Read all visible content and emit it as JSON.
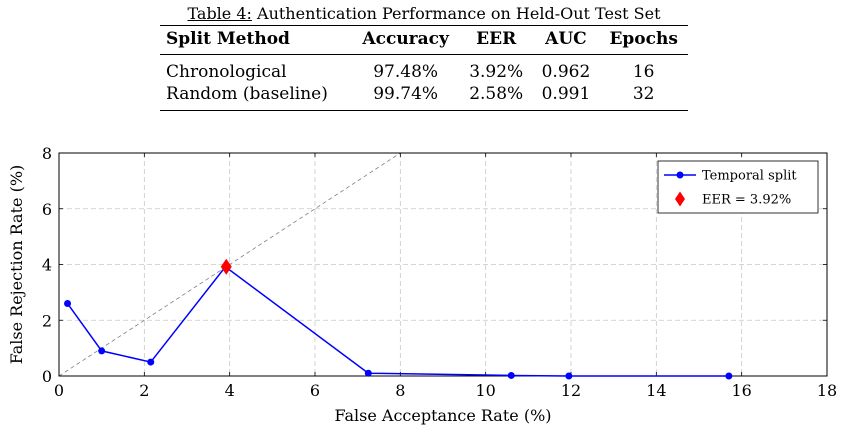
{
  "table": {
    "caption_label": "Table 4:",
    "caption_text": "Authentication Performance on Held-Out Test Set",
    "headers": [
      "Split Method",
      "Accuracy",
      "EER",
      "AUC",
      "Epochs"
    ],
    "rows": [
      [
        "Chronological",
        "97.48%",
        "3.92%",
        "0.962",
        "16"
      ],
      [
        "Random (baseline)",
        "99.74%",
        "2.58%",
        "0.991",
        "32"
      ]
    ]
  },
  "chart_data": {
    "type": "line",
    "xlabel": "False Acceptance Rate (%)",
    "ylabel": "False Rejection Rate (%)",
    "xlim": [
      0,
      18
    ],
    "ylim": [
      0,
      8
    ],
    "x_ticks": [
      0,
      2,
      4,
      6,
      8,
      10,
      12,
      14,
      16,
      18
    ],
    "y_ticks": [
      0,
      2,
      4,
      6,
      8
    ],
    "grid": true,
    "legend_position": "top-right",
    "series": [
      {
        "name": "Temporal split",
        "color": "#0000ff",
        "marker": "circle",
        "x": [
          0.2,
          1.0,
          2.15,
          3.9,
          7.25,
          10.6,
          11.95,
          15.7
        ],
        "y": [
          2.6,
          0.9,
          0.5,
          3.92,
          0.1,
          0.02,
          0.0,
          0.0
        ]
      }
    ],
    "eer_point": {
      "name": "EER = 3.92%",
      "x": 3.92,
      "y": 3.92,
      "color": "#ff0000",
      "marker": "diamond"
    },
    "reference_line": {
      "style": "dashed",
      "color": "#808080",
      "x": [
        0,
        8
      ],
      "y": [
        0,
        8
      ]
    }
  }
}
